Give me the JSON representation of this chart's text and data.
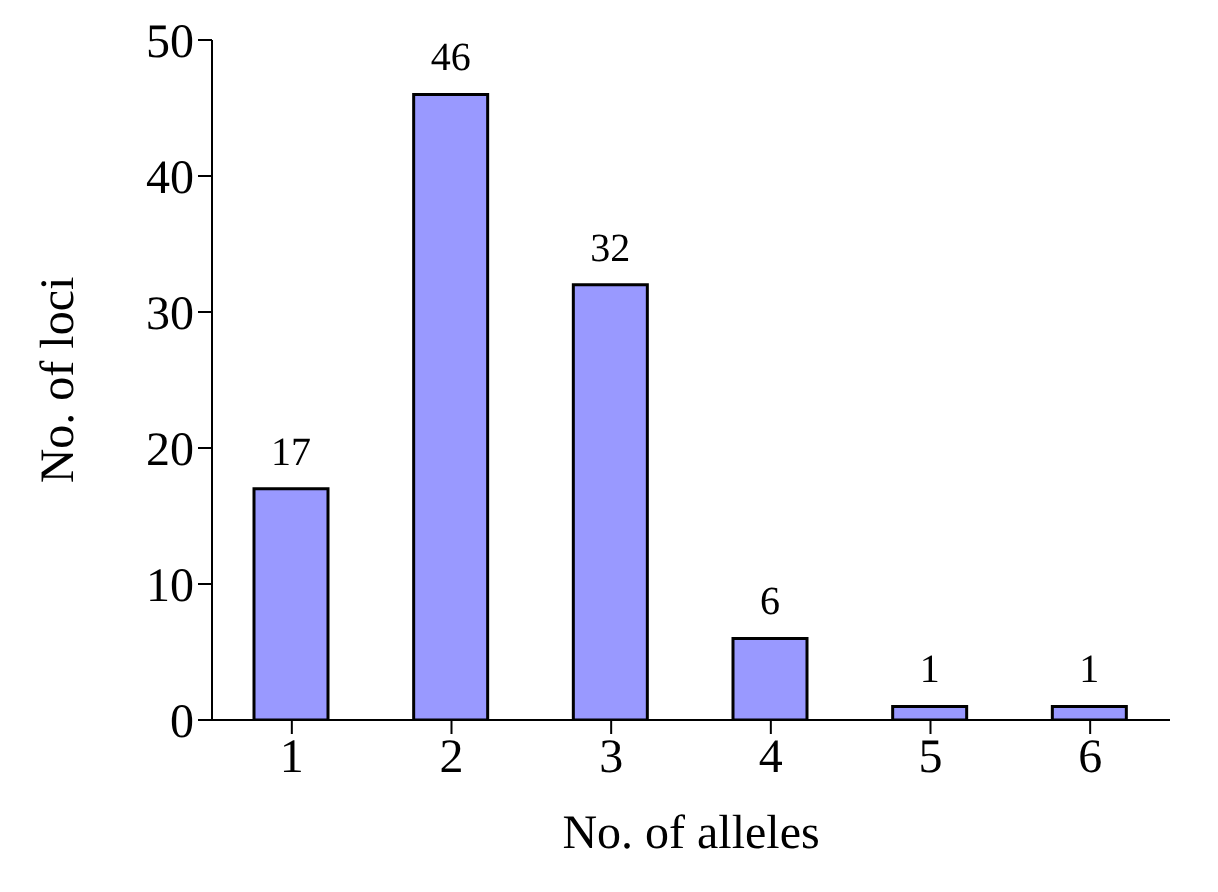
{
  "chart_data": {
    "type": "bar",
    "xlabel": "No. of alleles",
    "ylabel": "No. of loci",
    "categories": [
      "1",
      "2",
      "3",
      "4",
      "5",
      "6"
    ],
    "values": [
      17,
      46,
      32,
      6,
      1,
      1
    ],
    "color": "#9999ff",
    "ylim": [
      0,
      50
    ],
    "yticks": [
      0,
      10,
      20,
      30,
      40,
      50
    ],
    "grid": false,
    "data_labels": true
  }
}
